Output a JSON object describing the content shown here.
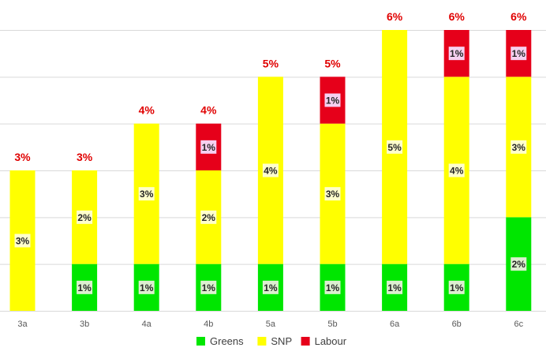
{
  "chart_data": {
    "type": "bar",
    "stacked": true,
    "categories": [
      "3a",
      "3b",
      "4a",
      "4b",
      "5a",
      "5b",
      "6a",
      "6b",
      "6c"
    ],
    "series": [
      {
        "name": "Greens",
        "color": "#00e600",
        "values": [
          0,
          1,
          1,
          1,
          1,
          1,
          1,
          1,
          2
        ]
      },
      {
        "name": "SNP",
        "color": "#ffff00",
        "values": [
          3,
          2,
          3,
          2,
          4,
          3,
          5,
          4,
          3
        ]
      },
      {
        "name": "Labour",
        "color": "#e6001a",
        "values": [
          0,
          0,
          0,
          1,
          0,
          1,
          0,
          1,
          1
        ]
      }
    ],
    "totals": [
      3,
      3,
      4,
      4,
      5,
      5,
      6,
      6,
      6
    ],
    "unit": "%",
    "ylim": [
      0,
      6
    ],
    "grid": true,
    "legend_position": "bottom",
    "title": "",
    "xlabel": "",
    "ylabel": ""
  }
}
